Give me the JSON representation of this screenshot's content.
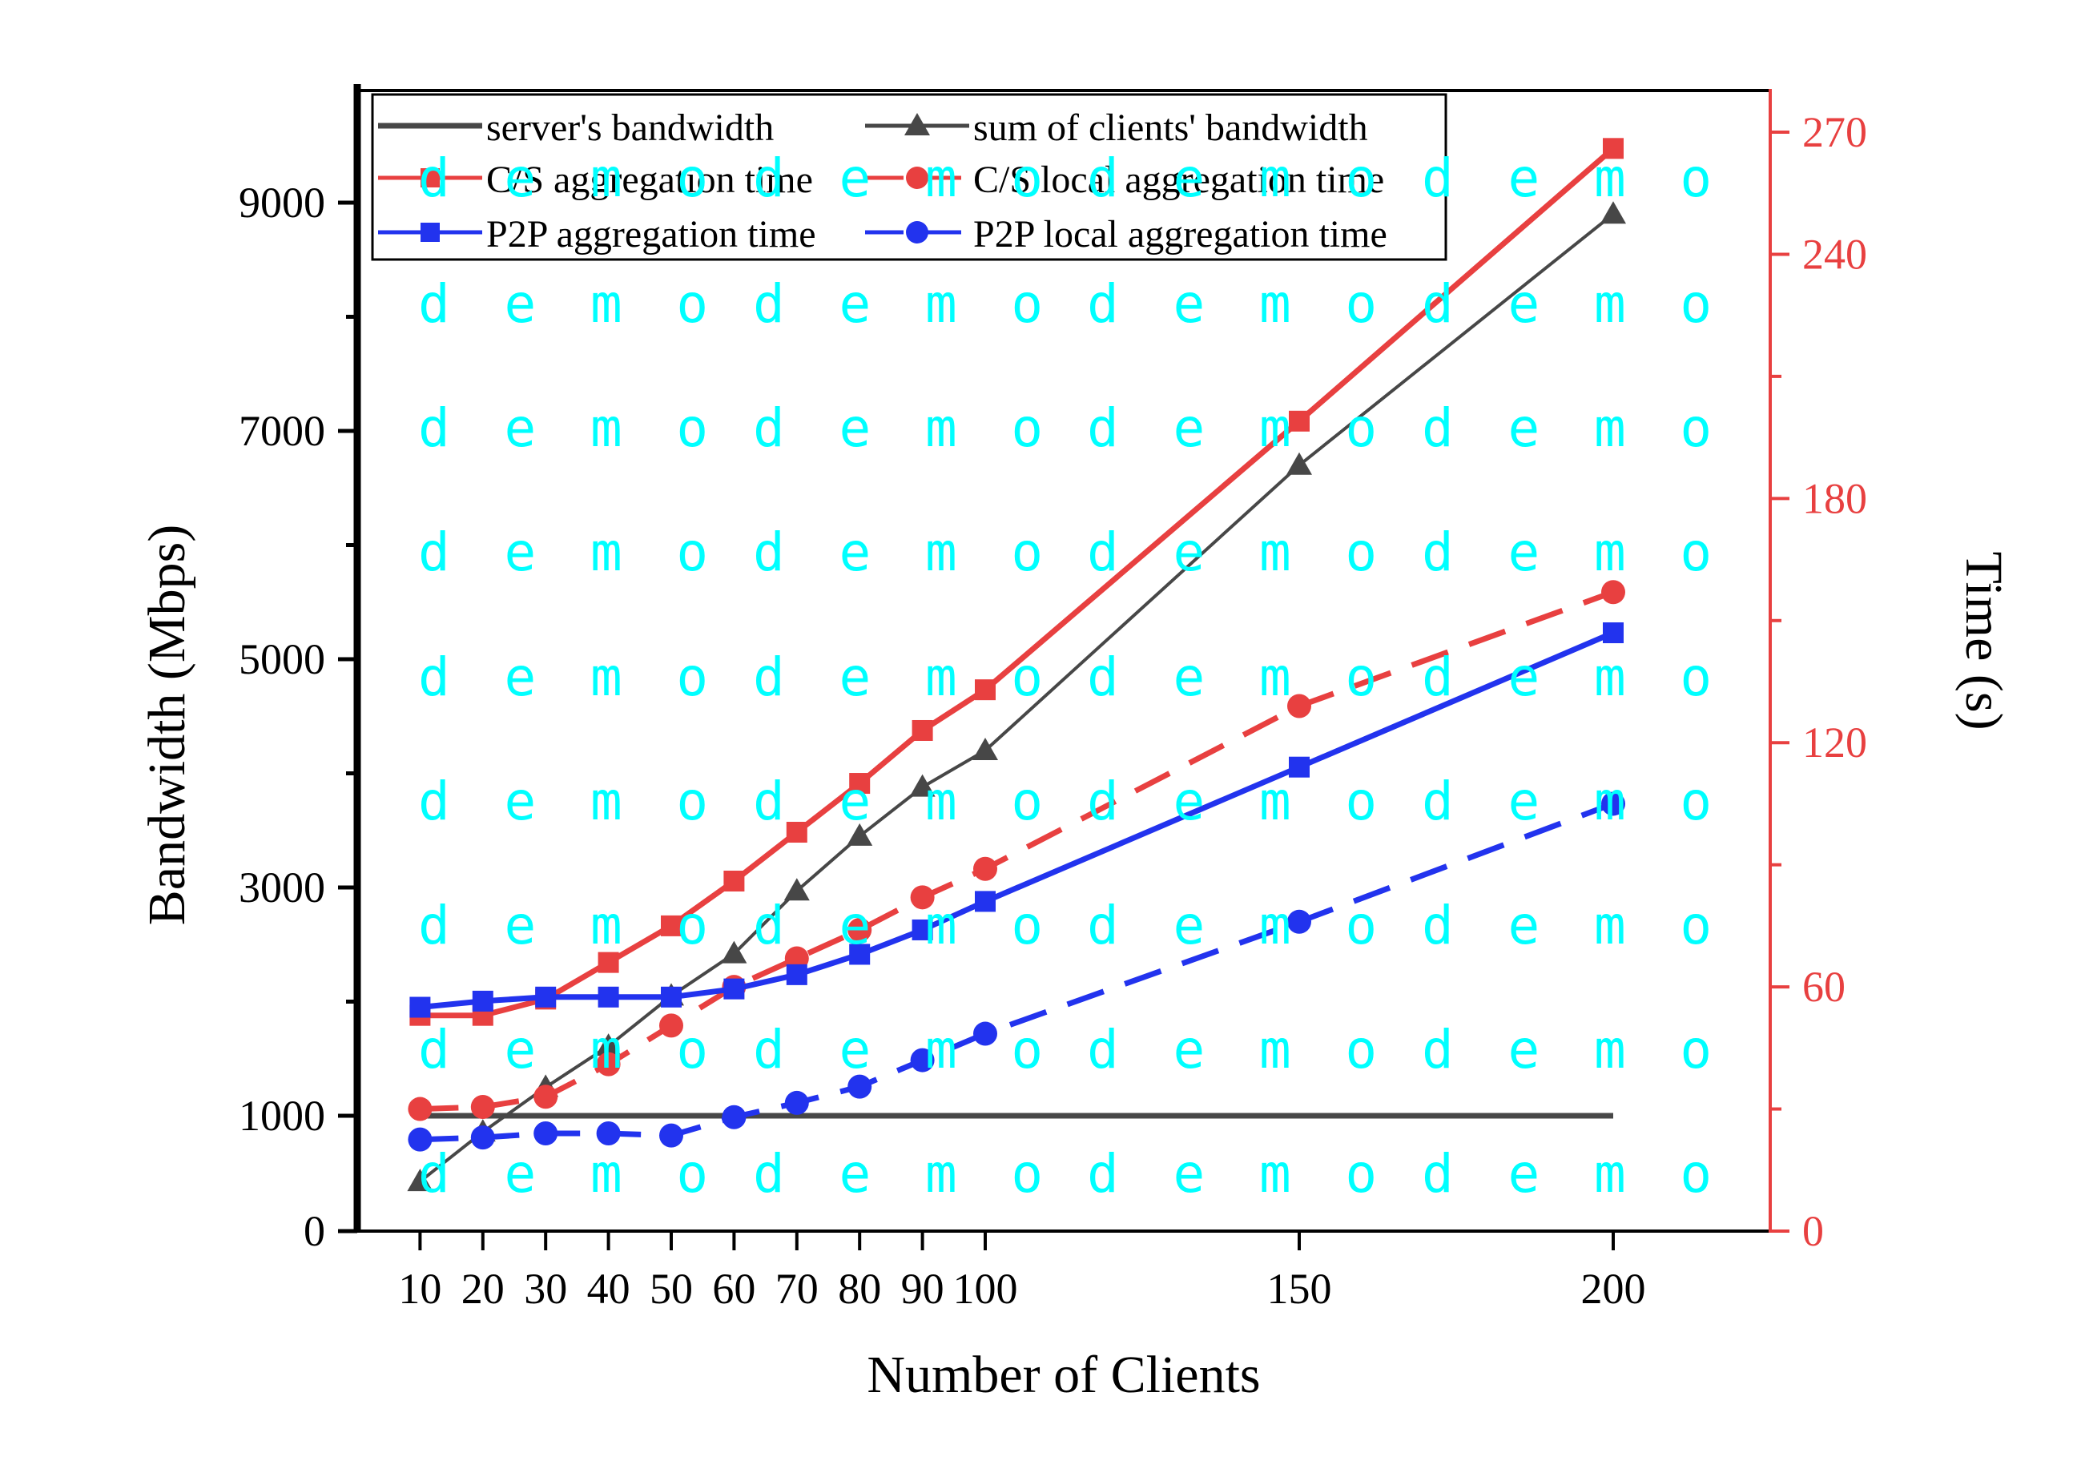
{
  "chart_data": {
    "type": "line",
    "xlabel": "Number of Clients",
    "ylabel_left": "Bandwidth (Mbps)",
    "ylabel_right": "Time (s)",
    "x": [
      10,
      20,
      30,
      40,
      50,
      60,
      70,
      80,
      90,
      100,
      150,
      200
    ],
    "x_tick_labels": [
      "10",
      "20",
      "30",
      "40",
      "50",
      "60",
      "70",
      "80",
      "90",
      "100",
      "150",
      "200"
    ],
    "xlim": [
      0,
      225
    ],
    "ylim_left": [
      0,
      10000
    ],
    "y_left_ticks": [
      0,
      1000,
      3000,
      5000,
      7000,
      9000
    ],
    "ylim_right": [
      0,
      270
    ],
    "y_right_ticks": [
      0,
      60,
      120,
      180,
      240,
      270
    ],
    "y_right_tick_labels": [
      "0",
      "60",
      "120",
      "180",
      "240",
      "270"
    ],
    "grid": false,
    "legend_position": "top-left",
    "series": [
      {
        "name": "server's bandwidth",
        "axis": "left",
        "color": "#474747",
        "marker": "none",
        "dash": "solid",
        "values": [
          1000,
          1000,
          1000,
          1000,
          1000,
          1000,
          1000,
          1000,
          1000,
          1000,
          1000,
          1000
        ]
      },
      {
        "name": "sum of clients' bandwidth",
        "axis": "left",
        "color": "#474747",
        "marker": "triangle",
        "dash": "solid",
        "values": [
          430,
          860,
          1250,
          1610,
          2050,
          2420,
          2970,
          3450,
          3880,
          4200,
          6700,
          8900
        ]
      },
      {
        "name": "C/S aggregation time",
        "axis": "right",
        "color": "#e84040",
        "marker": "square",
        "dash": "solid",
        "values": [
          53,
          53,
          57,
          66,
          75,
          86,
          98,
          110,
          123,
          133,
          199,
          266
        ]
      },
      {
        "name": "C/S local aggregation time",
        "axis": "right",
        "color": "#e84040",
        "marker": "circle",
        "dash": "dashed",
        "values": [
          30,
          30.5,
          33,
          41,
          50.5,
          60,
          67,
          74,
          82,
          89,
          129,
          157
        ]
      },
      {
        "name": "P2P aggregation time",
        "axis": "right",
        "color": "#2233ee",
        "marker": "square",
        "dash": "solid",
        "values": [
          55,
          56.5,
          57.5,
          57.5,
          57.5,
          59.5,
          63,
          68,
          74,
          81,
          114,
          147
        ]
      },
      {
        "name": "P2P local aggregation time",
        "axis": "right",
        "color": "#2233ee",
        "marker": "circle",
        "dash": "dashed",
        "values": [
          22.5,
          23,
          24,
          24,
          23.5,
          28,
          31.5,
          35.5,
          42,
          48.5,
          76,
          105
        ]
      }
    ]
  },
  "watermark": {
    "text": "demo",
    "color": "#00ffff"
  }
}
